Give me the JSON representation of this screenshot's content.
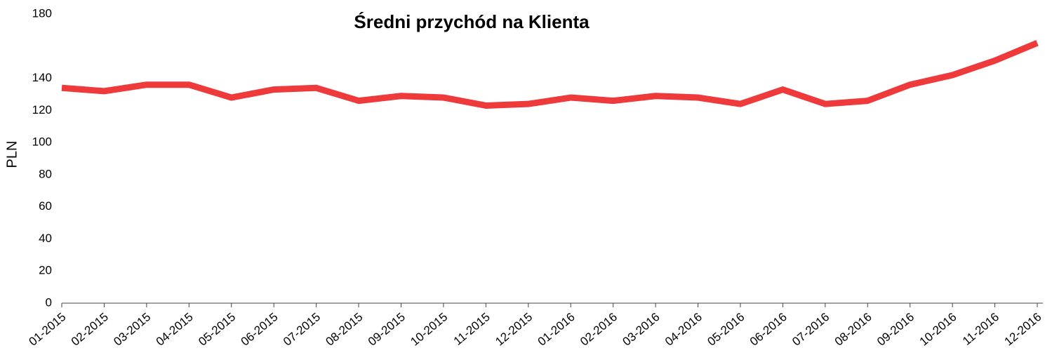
{
  "chart_data": {
    "type": "line",
    "title": "Średni przychód na Klienta",
    "ylabel": "PLN",
    "categories": [
      "01-2015",
      "02-2015",
      "03-2015",
      "04-2015",
      "05-2015",
      "06-2015",
      "07-2015",
      "08-2015",
      "09-2015",
      "10-2015",
      "11-2015",
      "12-2015",
      "01-2016",
      "02-2016",
      "03-2016",
      "04-2016",
      "05-2016",
      "06-2016",
      "07-2016",
      "08-2016",
      "09-2016",
      "10-2016",
      "11-2016",
      "12-2016"
    ],
    "series": [
      {
        "name": "Średni przychód",
        "color": "#ee3a3b",
        "values": [
          134,
          132,
          136,
          136,
          128,
          133,
          134,
          126,
          129,
          128,
          123,
          124,
          128,
          126,
          129,
          128,
          124,
          133,
          124,
          126,
          136,
          142,
          151,
          162
        ]
      }
    ],
    "ylim": [
      0,
      180
    ],
    "yticks": [
      0,
      20,
      40,
      60,
      80,
      100,
      120,
      140,
      180
    ]
  }
}
